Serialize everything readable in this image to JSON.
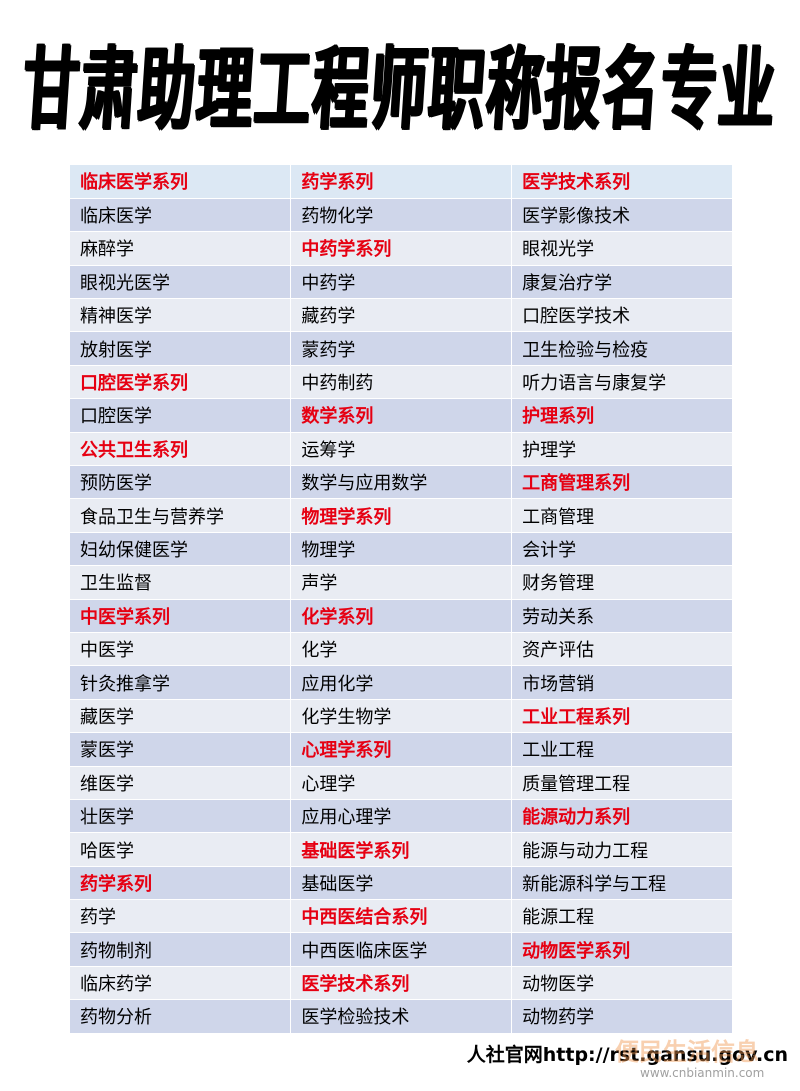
{
  "header": {
    "title": "甘肃助理工程师职称报名专业"
  },
  "table": {
    "rows": [
      [
        {
          "text": "临床医学系列",
          "red": true
        },
        {
          "text": "药学系列",
          "red": true
        },
        {
          "text": "医学技术系列",
          "red": true
        }
      ],
      [
        {
          "text": "临床医学"
        },
        {
          "text": "药物化学"
        },
        {
          "text": "医学影像技术"
        }
      ],
      [
        {
          "text": "麻醉学"
        },
        {
          "text": "中药学系列",
          "red": true
        },
        {
          "text": "眼视光学"
        }
      ],
      [
        {
          "text": "眼视光医学"
        },
        {
          "text": "中药学"
        },
        {
          "text": "康复治疗学"
        }
      ],
      [
        {
          "text": "精神医学"
        },
        {
          "text": "藏药学"
        },
        {
          "text": "口腔医学技术"
        }
      ],
      [
        {
          "text": "放射医学"
        },
        {
          "text": "蒙药学"
        },
        {
          "text": "卫生检验与检疫"
        }
      ],
      [
        {
          "text": "口腔医学系列",
          "red": true
        },
        {
          "text": "中药制药"
        },
        {
          "text": "听力语言与康复学"
        }
      ],
      [
        {
          "text": "口腔医学"
        },
        {
          "text": "数学系列",
          "red": true
        },
        {
          "text": "护理系列",
          "red": true
        }
      ],
      [
        {
          "text": "公共卫生系列",
          "red": true
        },
        {
          "text": "运筹学"
        },
        {
          "text": "护理学"
        }
      ],
      [
        {
          "text": "预防医学"
        },
        {
          "text": "数学与应用数学"
        },
        {
          "text": "工商管理系列",
          "red": true
        }
      ],
      [
        {
          "text": "食品卫生与营养学"
        },
        {
          "text": "物理学系列",
          "red": true
        },
        {
          "text": "工商管理"
        }
      ],
      [
        {
          "text": "妇幼保健医学"
        },
        {
          "text": "物理学"
        },
        {
          "text": "会计学"
        }
      ],
      [
        {
          "text": "卫生监督"
        },
        {
          "text": "声学"
        },
        {
          "text": "财务管理"
        }
      ],
      [
        {
          "text": "中医学系列",
          "red": true
        },
        {
          "text": "化学系列",
          "red": true
        },
        {
          "text": "劳动关系"
        }
      ],
      [
        {
          "text": "中医学"
        },
        {
          "text": "化学"
        },
        {
          "text": "资产评估"
        }
      ],
      [
        {
          "text": "针灸推拿学"
        },
        {
          "text": "应用化学"
        },
        {
          "text": "市场营销"
        }
      ],
      [
        {
          "text": "藏医学"
        },
        {
          "text": "化学生物学"
        },
        {
          "text": "工业工程系列",
          "red": true
        }
      ],
      [
        {
          "text": "蒙医学"
        },
        {
          "text": "心理学系列",
          "red": true
        },
        {
          "text": "工业工程"
        }
      ],
      [
        {
          "text": "维医学"
        },
        {
          "text": "心理学"
        },
        {
          "text": "质量管理工程"
        }
      ],
      [
        {
          "text": "壮医学"
        },
        {
          "text": "应用心理学"
        },
        {
          "text": "能源动力系列",
          "red": true
        }
      ],
      [
        {
          "text": "哈医学"
        },
        {
          "text": "基础医学系列",
          "red": true
        },
        {
          "text": "能源与动力工程"
        }
      ],
      [
        {
          "text": "药学系列",
          "red": true
        },
        {
          "text": "基础医学"
        },
        {
          "text": "新能源科学与工程"
        }
      ],
      [
        {
          "text": "药学"
        },
        {
          "text": "中西医结合系列",
          "red": true
        },
        {
          "text": "能源工程"
        }
      ],
      [
        {
          "text": "药物制剂"
        },
        {
          "text": "中西医临床医学"
        },
        {
          "text": "动物医学系列",
          "red": true
        }
      ],
      [
        {
          "text": "临床药学"
        },
        {
          "text": "医学技术系列",
          "red": true
        },
        {
          "text": "动物医学"
        }
      ],
      [
        {
          "text": "药物分析"
        },
        {
          "text": "医学检验技术"
        },
        {
          "text": "动物药学"
        }
      ]
    ]
  },
  "footer": {
    "text": "人社官网http://rst.gansu.gov.cn",
    "watermark": "便民生活信息",
    "watermark_url": "www.cnbianmin.com"
  }
}
